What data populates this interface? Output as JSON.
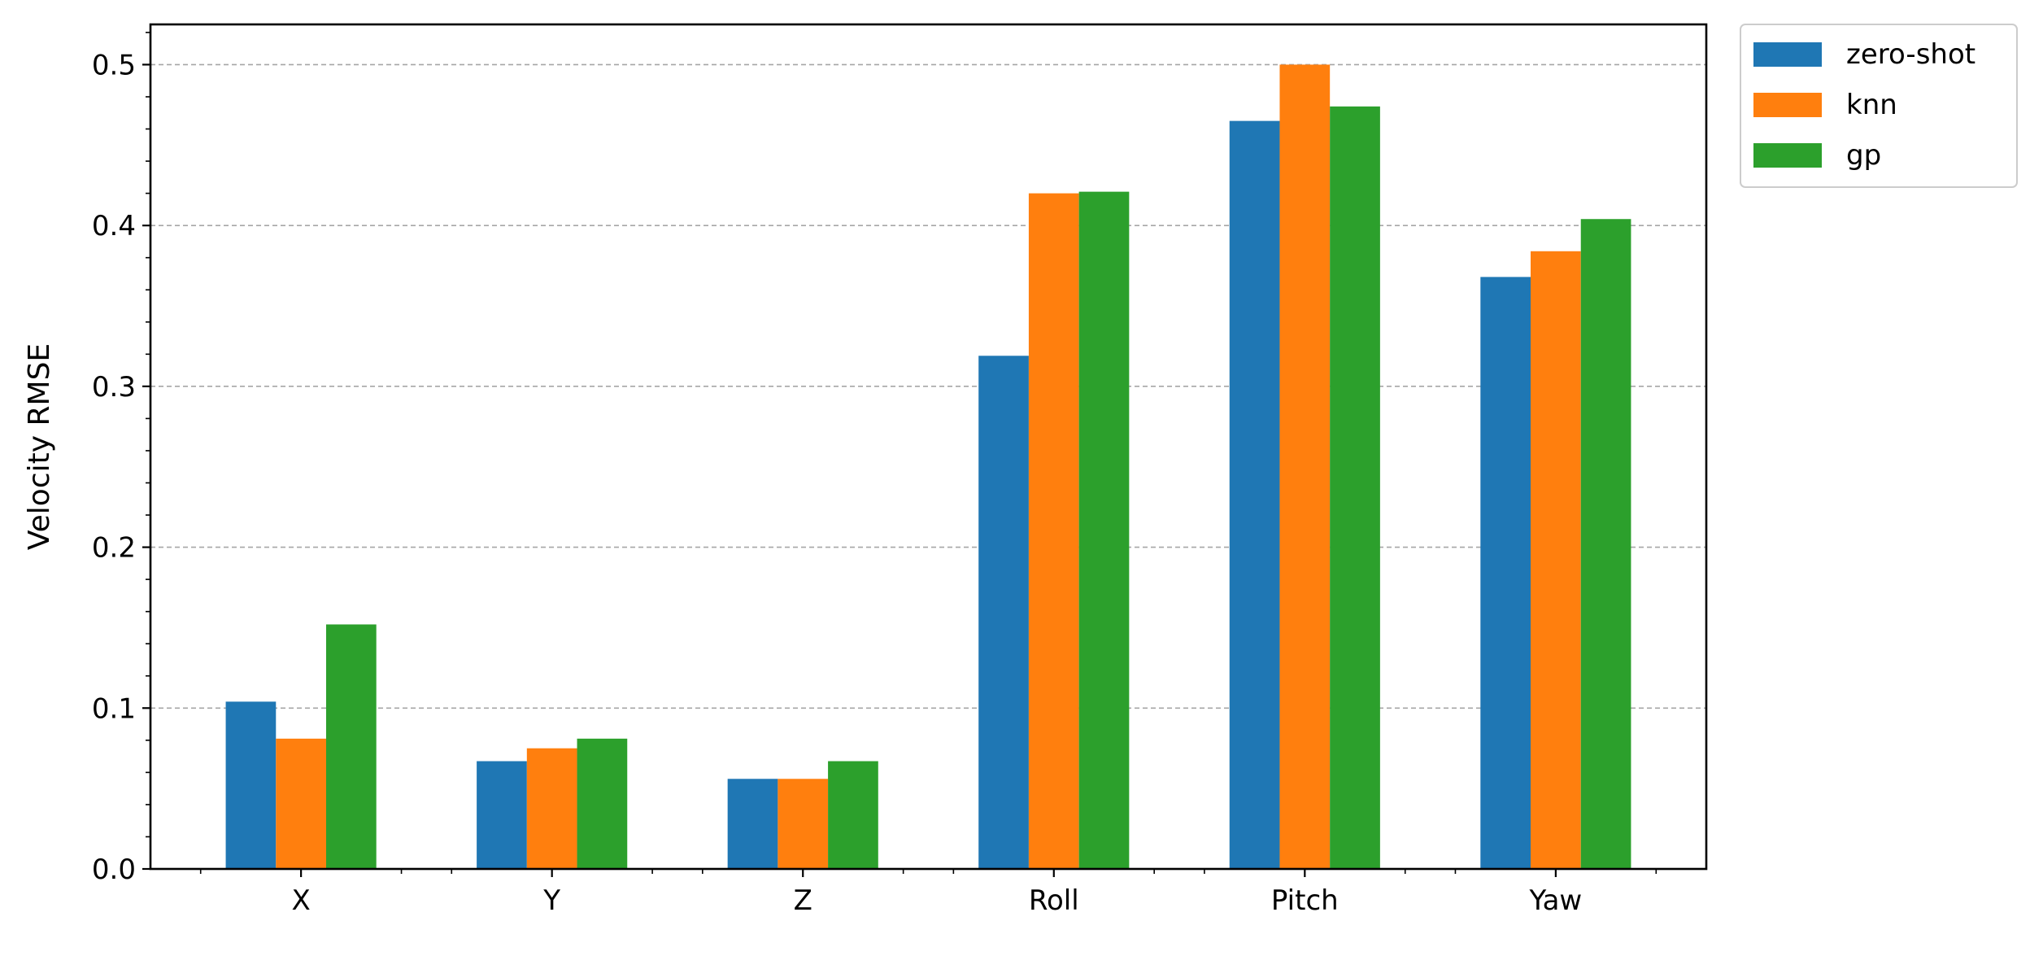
{
  "chart_data": {
    "type": "bar",
    "title": "",
    "xlabel": "",
    "ylabel": "Velocity RMSE",
    "categories": [
      "X",
      "Y",
      "Z",
      "Roll",
      "Pitch",
      "Yaw"
    ],
    "series": [
      {
        "name": "zero-shot",
        "color": "#1f77b4",
        "values": [
          0.104,
          0.067,
          0.056,
          0.319,
          0.465,
          0.368
        ]
      },
      {
        "name": "knn",
        "color": "#ff7f0e",
        "values": [
          0.081,
          0.075,
          0.056,
          0.42,
          0.5,
          0.384
        ]
      },
      {
        "name": "gp",
        "color": "#2ca02c",
        "values": [
          0.152,
          0.081,
          0.067,
          0.421,
          0.474,
          0.404
        ]
      }
    ],
    "ylim": [
      0,
      0.525
    ],
    "yticks": [
      "0.0",
      "0.1",
      "0.2",
      "0.3",
      "0.4",
      "0.5"
    ],
    "grid": "y-major-dashed",
    "legend": "outside-top-right"
  }
}
